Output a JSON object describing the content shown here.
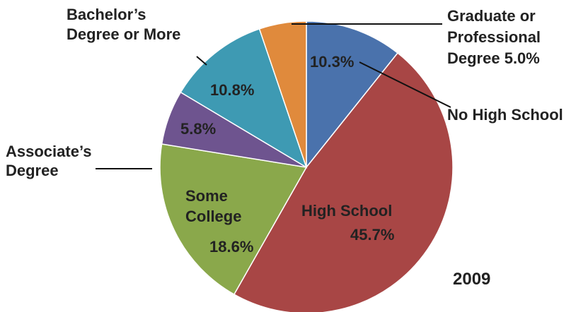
{
  "chart_data": {
    "type": "pie",
    "year_label": "2009",
    "slices": [
      {
        "name": "No High School",
        "label_lines": [
          "No High School"
        ],
        "value": 10.3,
        "value_label": "10.3%",
        "color": "#4A72AC"
      },
      {
        "name": "High School",
        "label_lines": [
          "High School"
        ],
        "value": 45.7,
        "value_label": "45.7%",
        "color": "#A84645"
      },
      {
        "name": "Some College",
        "label_lines": [
          "Some",
          "College"
        ],
        "value": 18.6,
        "value_label": "18.6%",
        "color": "#8AA84B"
      },
      {
        "name": "Associate's Degree",
        "label_lines": [
          "Associate’s",
          "Degree"
        ],
        "value": 5.8,
        "value_label": "5.8%",
        "color": "#6E548F"
      },
      {
        "name": "Bachelor's Degree or More",
        "label_lines": [
          "Bachelor’s",
          "Degree or More"
        ],
        "value": 10.8,
        "value_label": "10.8%",
        "color": "#3E9AB3"
      },
      {
        "name": "Graduate or Professional Degree",
        "label_lines": [
          "Graduate or",
          "Professional",
          "Degree 5.0%"
        ],
        "value": 5.0,
        "value_label": "",
        "color": "#E08A3C"
      }
    ]
  }
}
